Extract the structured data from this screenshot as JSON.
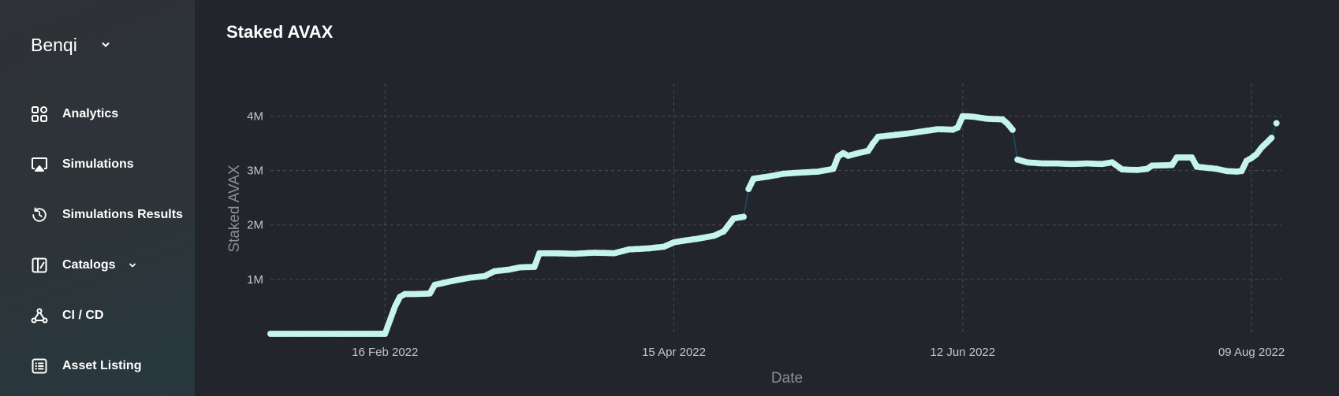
{
  "sidebar": {
    "brand": "Benqi",
    "items": [
      {
        "label": "Analytics",
        "icon": "dashboard-grid-icon"
      },
      {
        "label": "Simulations",
        "icon": "airplay-icon"
      },
      {
        "label": "Simulations Results",
        "icon": "history-icon"
      },
      {
        "label": "Catalogs",
        "icon": "catalog-book-icon",
        "has_dropdown": true
      },
      {
        "label": "CI / CD",
        "icon": "pipeline-nodes-icon"
      },
      {
        "label": "Asset Listing",
        "icon": "list-icon"
      }
    ]
  },
  "colors": {
    "background": "#22252b",
    "sidebar": "#2e3439",
    "line": "#1a4f66",
    "marker": "#c5f4ec",
    "grid": "#4a4d53"
  },
  "chart_data": {
    "type": "line",
    "title": "Staked AVAX",
    "xlabel": "Date",
    "ylabel": "Staked AVAX",
    "x_axis": "date",
    "xlim": [
      "2022-01-24",
      "2022-08-15"
    ],
    "ylim": [
      0,
      4600000
    ],
    "x_ticks": [
      "2022-02-16",
      "2022-04-15",
      "2022-06-12",
      "2022-08-09"
    ],
    "x_tick_labels": [
      "16 Feb 2022",
      "15 Apr 2022",
      "12 Jun 2022",
      "09 Aug 2022"
    ],
    "y_ticks": [
      1000000,
      2000000,
      3000000,
      4000000
    ],
    "y_tick_labels": [
      "1M",
      "2M",
      "3M",
      "4M"
    ],
    "grid": true,
    "markers": true,
    "series": [
      {
        "points": [
          [
            "2022-01-24",
            0
          ],
          [
            "2022-02-03",
            0
          ],
          [
            "2022-02-10",
            0
          ],
          [
            "2022-02-16",
            0
          ],
          [
            "2022-02-17",
            250000
          ],
          [
            "2022-02-18",
            500000
          ],
          [
            "2022-02-19",
            680000
          ],
          [
            "2022-02-20",
            730000
          ],
          [
            "2022-02-22",
            730000
          ],
          [
            "2022-02-25",
            740000
          ],
          [
            "2022-02-26",
            900000
          ],
          [
            "2022-02-28",
            940000
          ],
          [
            "2022-03-02",
            980000
          ],
          [
            "2022-03-05",
            1030000
          ],
          [
            "2022-03-08",
            1060000
          ],
          [
            "2022-03-10",
            1150000
          ],
          [
            "2022-03-13",
            1180000
          ],
          [
            "2022-03-15",
            1220000
          ],
          [
            "2022-03-18",
            1230000
          ],
          [
            "2022-03-19",
            1480000
          ],
          [
            "2022-03-22",
            1480000
          ],
          [
            "2022-03-26",
            1470000
          ],
          [
            "2022-03-30",
            1490000
          ],
          [
            "2022-04-03",
            1480000
          ],
          [
            "2022-04-06",
            1550000
          ],
          [
            "2022-04-10",
            1570000
          ],
          [
            "2022-04-13",
            1600000
          ],
          [
            "2022-04-15",
            1680000
          ],
          [
            "2022-04-17",
            1710000
          ],
          [
            "2022-04-20",
            1750000
          ],
          [
            "2022-04-23",
            1800000
          ],
          [
            "2022-04-25",
            1880000
          ],
          [
            "2022-04-27",
            2120000
          ],
          [
            "2022-04-29",
            2150000
          ],
          [
            "2022-04-30",
            2660000
          ],
          [
            "2022-05-01",
            2850000
          ],
          [
            "2022-05-04",
            2890000
          ],
          [
            "2022-05-07",
            2940000
          ],
          [
            "2022-05-10",
            2960000
          ],
          [
            "2022-05-14",
            2980000
          ],
          [
            "2022-05-17",
            3030000
          ],
          [
            "2022-05-18",
            3260000
          ],
          [
            "2022-05-19",
            3320000
          ],
          [
            "2022-05-20",
            3270000
          ],
          [
            "2022-05-22",
            3320000
          ],
          [
            "2022-05-24",
            3360000
          ],
          [
            "2022-05-25",
            3500000
          ],
          [
            "2022-05-26",
            3620000
          ],
          [
            "2022-05-29",
            3650000
          ],
          [
            "2022-06-01",
            3680000
          ],
          [
            "2022-06-04",
            3720000
          ],
          [
            "2022-06-07",
            3760000
          ],
          [
            "2022-06-10",
            3750000
          ],
          [
            "2022-06-11",
            3790000
          ],
          [
            "2022-06-12",
            4000000
          ],
          [
            "2022-06-14",
            3990000
          ],
          [
            "2022-06-17",
            3950000
          ],
          [
            "2022-06-20",
            3940000
          ],
          [
            "2022-06-21",
            3860000
          ],
          [
            "2022-06-22",
            3750000
          ],
          [
            "2022-06-23",
            3200000
          ],
          [
            "2022-06-25",
            3150000
          ],
          [
            "2022-06-28",
            3130000
          ],
          [
            "2022-07-01",
            3130000
          ],
          [
            "2022-07-04",
            3120000
          ],
          [
            "2022-07-07",
            3130000
          ],
          [
            "2022-07-10",
            3120000
          ],
          [
            "2022-07-12",
            3150000
          ],
          [
            "2022-07-14",
            3020000
          ],
          [
            "2022-07-17",
            3010000
          ],
          [
            "2022-07-19",
            3030000
          ],
          [
            "2022-07-20",
            3090000
          ],
          [
            "2022-07-24",
            3100000
          ],
          [
            "2022-07-25",
            3240000
          ],
          [
            "2022-07-28",
            3240000
          ],
          [
            "2022-07-29",
            3070000
          ],
          [
            "2022-07-31",
            3050000
          ],
          [
            "2022-08-02",
            3030000
          ],
          [
            "2022-08-04",
            2990000
          ],
          [
            "2022-08-06",
            2980000
          ],
          [
            "2022-08-07",
            2990000
          ],
          [
            "2022-08-08",
            3180000
          ],
          [
            "2022-08-09",
            3230000
          ],
          [
            "2022-08-10",
            3300000
          ],
          [
            "2022-08-11",
            3420000
          ],
          [
            "2022-08-13",
            3600000
          ],
          [
            "2022-08-14",
            3870000
          ]
        ]
      }
    ]
  }
}
